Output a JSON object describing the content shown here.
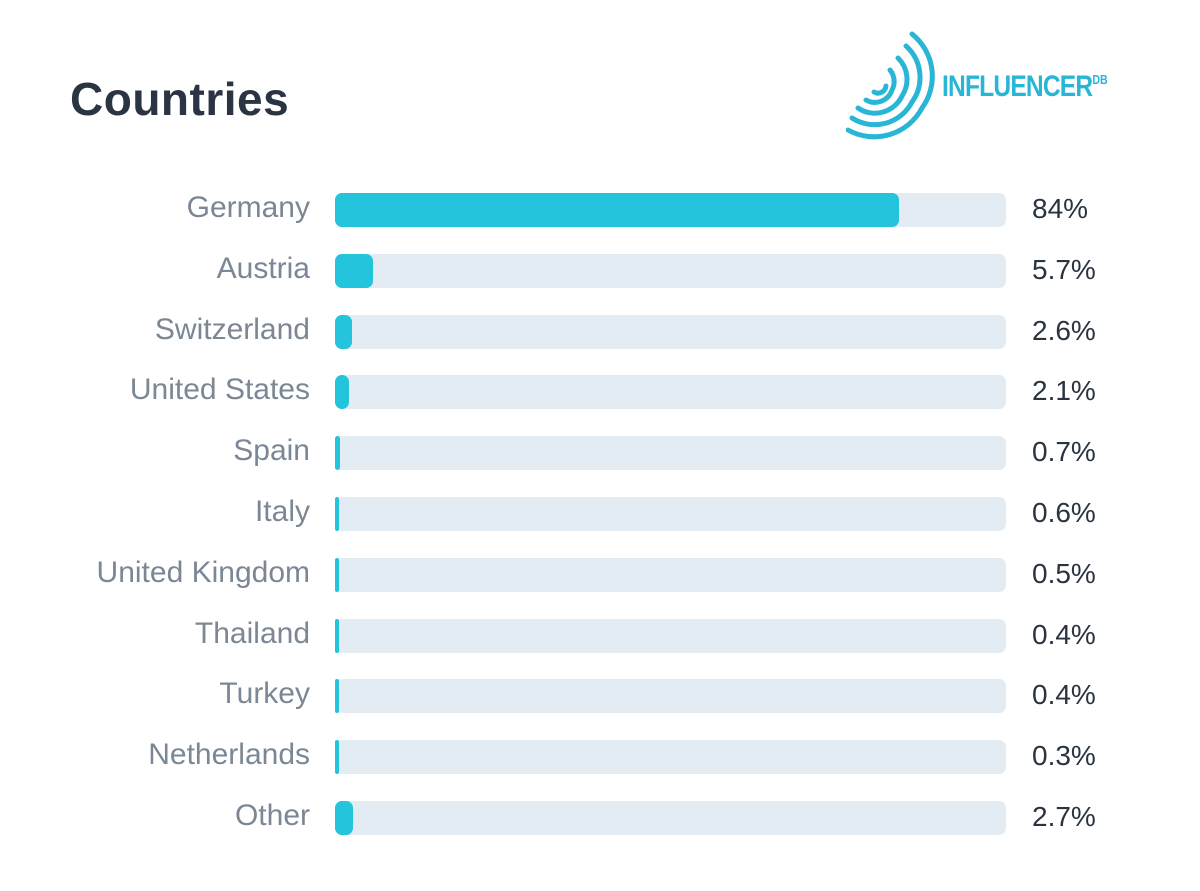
{
  "header": {
    "title": "Countries",
    "logo": {
      "text": "INFLUENCER",
      "superscript": "DB",
      "icon": "signal-waves-icon",
      "color": "#29b6d6"
    }
  },
  "colors": {
    "bar_fill": "#24c4dc",
    "bar_track": "#e3ecf2",
    "label": "#7b8794",
    "value": "#2a3340"
  },
  "chart_data": {
    "type": "bar",
    "orientation": "horizontal",
    "title": "Countries",
    "xlim": [
      0,
      100
    ],
    "unit": "%",
    "categories": [
      "Germany",
      "Austria",
      "Switzerland",
      "United States",
      "Spain",
      "Italy",
      "United Kingdom",
      "Thailand",
      "Turkey",
      "Netherlands",
      "Other"
    ],
    "values": [
      84,
      5.7,
      2.6,
      2.1,
      0.7,
      0.6,
      0.5,
      0.4,
      0.4,
      0.3,
      2.7
    ],
    "value_labels": [
      "84%",
      "5.7%",
      "2.6%",
      "2.1%",
      "0.7%",
      "0.6%",
      "0.5%",
      "0.4%",
      "0.4%",
      "0.3%",
      "2.7%"
    ],
    "grid": false,
    "legend": "none"
  }
}
